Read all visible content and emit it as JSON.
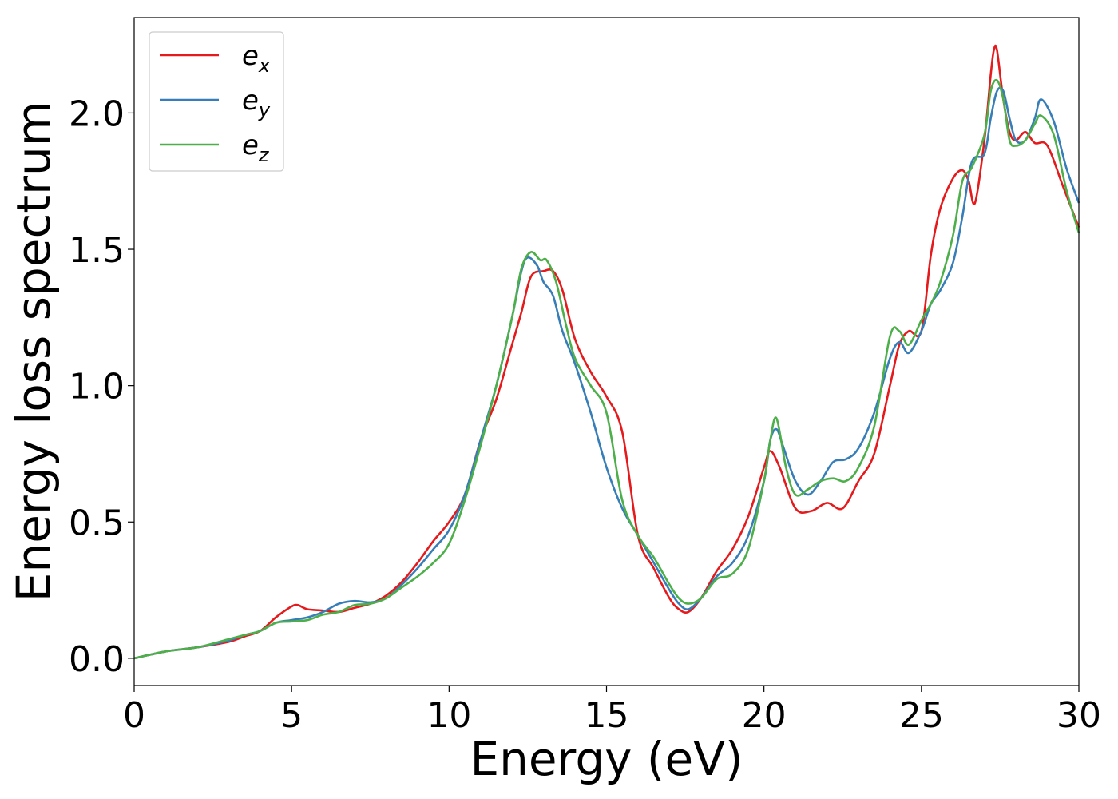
{
  "chart_data": {
    "type": "line",
    "title": "",
    "xlabel": "Energy (eV)",
    "ylabel": "Energy loss spectrum",
    "xlim": [
      0,
      30
    ],
    "ylim": [
      -0.1,
      2.35
    ],
    "xticks": [
      0,
      5,
      10,
      15,
      20,
      25,
      30
    ],
    "xtick_labels": [
      "0",
      "5",
      "10",
      "15",
      "20",
      "25",
      "30"
    ],
    "yticks": [
      0.0,
      0.5,
      1.0,
      1.5,
      2.0
    ],
    "ytick_labels": [
      "0.0",
      "0.5",
      "1.0",
      "1.5",
      "2.0"
    ],
    "grid": false,
    "legend_position": "top-left",
    "series": [
      {
        "name": "e_x",
        "legend_base": "e",
        "legend_sub": "x",
        "color": "#e41a1c",
        "x": [
          0,
          1,
          2,
          3,
          3.5,
          4,
          4.5,
          5,
          5.2,
          5.5,
          6,
          6.5,
          7,
          7.5,
          8,
          8.5,
          9,
          9.5,
          10,
          10.5,
          11,
          11.5,
          12,
          12.3,
          12.6,
          13,
          13.3,
          13.6,
          14,
          14.5,
          15,
          15.5,
          16,
          16.5,
          17,
          17.3,
          17.6,
          18,
          18.5,
          19,
          19.5,
          20,
          20.2,
          20.5,
          21,
          21.5,
          22,
          22.5,
          23,
          23.5,
          24,
          24.3,
          24.6,
          25,
          25.3,
          25.6,
          26,
          26.3,
          26.5,
          26.7,
          27,
          27.2,
          27.3,
          27.4,
          27.6,
          27.8,
          28,
          28.3,
          28.6,
          29,
          29.5,
          30
        ],
        "y": [
          0.0,
          0.025,
          0.04,
          0.06,
          0.08,
          0.1,
          0.15,
          0.19,
          0.195,
          0.18,
          0.175,
          0.17,
          0.185,
          0.2,
          0.23,
          0.28,
          0.35,
          0.43,
          0.5,
          0.6,
          0.8,
          0.95,
          1.15,
          1.27,
          1.4,
          1.42,
          1.42,
          1.35,
          1.17,
          1.05,
          0.96,
          0.83,
          0.45,
          0.33,
          0.22,
          0.18,
          0.17,
          0.22,
          0.32,
          0.4,
          0.52,
          0.7,
          0.76,
          0.7,
          0.55,
          0.54,
          0.57,
          0.55,
          0.65,
          0.75,
          1.0,
          1.15,
          1.2,
          1.2,
          1.48,
          1.65,
          1.76,
          1.79,
          1.75,
          1.67,
          1.9,
          2.14,
          2.23,
          2.23,
          2.05,
          1.93,
          1.9,
          1.93,
          1.89,
          1.88,
          1.73,
          1.58
        ]
      },
      {
        "name": "e_y",
        "legend_base": "e",
        "legend_sub": "y",
        "color": "#377eb8",
        "x": [
          0,
          1,
          2,
          3,
          3.5,
          4,
          4.5,
          5,
          5.5,
          6,
          6.5,
          7,
          7.5,
          8,
          8.5,
          9,
          9.5,
          10,
          10.5,
          11,
          11.5,
          12,
          12.3,
          12.5,
          12.8,
          13,
          13.3,
          13.6,
          14,
          14.5,
          15,
          15.5,
          16,
          16.5,
          17,
          17.3,
          17.6,
          18,
          18.5,
          19,
          19.5,
          20,
          20.2,
          20.4,
          20.6,
          21,
          21.4,
          21.8,
          22.2,
          22.6,
          23,
          23.5,
          24,
          24.3,
          24.6,
          25,
          25.3,
          25.6,
          26,
          26.3,
          26.6,
          27,
          27.2,
          27.4,
          27.6,
          27.8,
          28,
          28.3,
          28.6,
          28.8,
          29.2,
          29.6,
          30
        ],
        "y": [
          0.0,
          0.025,
          0.04,
          0.065,
          0.085,
          0.1,
          0.13,
          0.14,
          0.15,
          0.17,
          0.2,
          0.21,
          0.205,
          0.22,
          0.27,
          0.33,
          0.4,
          0.47,
          0.6,
          0.8,
          1.0,
          1.25,
          1.42,
          1.47,
          1.44,
          1.38,
          1.33,
          1.2,
          1.08,
          0.9,
          0.7,
          0.55,
          0.45,
          0.35,
          0.25,
          0.2,
          0.18,
          0.22,
          0.3,
          0.35,
          0.45,
          0.65,
          0.8,
          0.84,
          0.78,
          0.65,
          0.6,
          0.65,
          0.72,
          0.73,
          0.77,
          0.9,
          1.1,
          1.16,
          1.12,
          1.2,
          1.3,
          1.35,
          1.45,
          1.62,
          1.82,
          1.85,
          1.98,
          2.08,
          2.08,
          1.98,
          1.9,
          1.9,
          1.98,
          2.05,
          1.97,
          1.8,
          1.67
        ]
      },
      {
        "name": "e_z",
        "legend_base": "e",
        "legend_sub": "z",
        "color": "#4daf4a",
        "x": [
          0,
          1,
          2,
          3,
          3.5,
          4,
          4.5,
          5,
          5.5,
          6,
          6.5,
          7,
          7.5,
          8,
          8.5,
          9,
          9.5,
          10,
          10.5,
          11,
          11.5,
          12,
          12.3,
          12.6,
          12.9,
          13.1,
          13.4,
          13.7,
          14,
          14.5,
          15,
          15.5,
          16,
          16.5,
          17,
          17.3,
          17.6,
          18,
          18.5,
          19,
          19.5,
          20,
          20.2,
          20.4,
          20.7,
          21,
          21.4,
          21.8,
          22.2,
          22.6,
          23,
          23.5,
          24,
          24.3,
          24.6,
          25,
          25.3,
          25.6,
          26,
          26.3,
          26.6,
          27,
          27.2,
          27.4,
          27.6,
          27.8,
          28,
          28.3,
          28.6,
          28.8,
          29.2,
          29.6,
          30
        ],
        "y": [
          0.0,
          0.025,
          0.04,
          0.07,
          0.085,
          0.1,
          0.13,
          0.135,
          0.14,
          0.16,
          0.17,
          0.195,
          0.2,
          0.22,
          0.26,
          0.3,
          0.35,
          0.42,
          0.58,
          0.78,
          1.0,
          1.25,
          1.43,
          1.49,
          1.46,
          1.46,
          1.38,
          1.23,
          1.1,
          1.0,
          0.9,
          0.58,
          0.45,
          0.37,
          0.27,
          0.22,
          0.2,
          0.22,
          0.29,
          0.31,
          0.4,
          0.65,
          0.8,
          0.88,
          0.7,
          0.6,
          0.62,
          0.65,
          0.66,
          0.65,
          0.7,
          0.85,
          1.18,
          1.2,
          1.15,
          1.24,
          1.3,
          1.38,
          1.55,
          1.75,
          1.8,
          1.92,
          2.08,
          2.12,
          2.05,
          1.9,
          1.88,
          1.9,
          1.96,
          1.99,
          1.92,
          1.72,
          1.56
        ]
      }
    ]
  }
}
